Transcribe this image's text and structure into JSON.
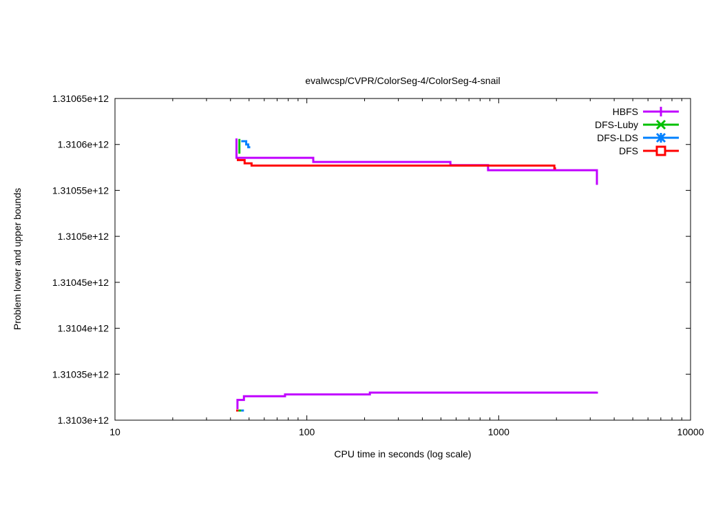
{
  "chart_data": {
    "type": "line",
    "title": "evalwcsp/CVPR/ColorSeg-4/ColorSeg-4-snail",
    "xlabel": "CPU time in seconds (log scale)",
    "ylabel": "Problem lower and upper bounds",
    "x_scale": "log",
    "xlim": [
      10,
      10000
    ],
    "ylim": [
      1310300000000.0,
      1310650000000.0
    ],
    "x_ticks": [
      10,
      100,
      1000,
      10000
    ],
    "x_tick_labels": [
      "10",
      "100",
      "1000",
      "10000"
    ],
    "y_ticks": [
      1310300000000.0,
      1310350000000.0,
      1310400000000.0,
      1310450000000.0,
      1310500000000.0,
      1310550000000.0,
      1310600000000.0,
      1310650000000.0
    ],
    "y_tick_labels": [
      "1.3103e+12",
      "1.31035e+12",
      "1.3104e+12",
      "1.31045e+12",
      "1.3105e+12",
      "1.31055e+12",
      "1.3106e+12",
      "1.31065e+12"
    ],
    "grid": false,
    "legend_position": "top-right-inside",
    "axis_color": "#000000",
    "background_color": "#ffffff",
    "series": [
      {
        "name": "HBFS",
        "color": "#c000ff",
        "marker": "plus",
        "lines": [
          [
            [
              43,
              1310606500000.0
            ],
            [
              43,
              1310585500000.0
            ],
            [
              108,
              1310585500000.0
            ],
            [
              108,
              1310581000000.0
            ],
            [
              560,
              1310581000000.0
            ],
            [
              560,
              1310577500000.0
            ],
            [
              880,
              1310577500000.0
            ],
            [
              880,
              1310572000000.0
            ],
            [
              3250,
              1310572000000.0
            ],
            [
              3250,
              1310556000000.0
            ]
          ],
          [
            [
              43.5,
              1310312000000.0
            ],
            [
              43.5,
              1310322000000.0
            ],
            [
              47,
              1310322000000.0
            ],
            [
              47,
              1310326000000.0
            ],
            [
              77,
              1310326000000.0
            ],
            [
              77,
              1310328000000.0
            ],
            [
              213,
              1310328000000.0
            ],
            [
              213,
              1310330000000.0
            ],
            [
              3250,
              1310330000000.0
            ],
            [
              3250,
              1310331000000.0
            ]
          ]
        ]
      },
      {
        "name": "DFS-Luby",
        "color": "#00c000",
        "marker": "cross",
        "lines": [
          [
            [
              44.5,
              1310606000000.0
            ],
            [
              44.5,
              1310590000000.0
            ]
          ],
          [
            [
              44,
              1310310500000.0
            ],
            [
              45.5,
              1310310500000.0
            ]
          ]
        ]
      },
      {
        "name": "DFS-LDS",
        "color": "#0080ff",
        "marker": "asterisk",
        "lines": [
          [
            [
              45.5,
              1310603500000.0
            ],
            [
              48.3,
              1310603500000.0
            ],
            [
              48.3,
              1310600000000.0
            ],
            [
              49.5,
              1310600000000.0
            ],
            [
              49.5,
              1310597000000.0
            ],
            [
              50.7,
              1310597000000.0
            ]
          ],
          [
            [
              45.5,
              1310310500000.0
            ],
            [
              47,
              1310310500000.0
            ]
          ]
        ]
      },
      {
        "name": "DFS",
        "color": "#ff0000",
        "marker": "square",
        "lines": [
          [
            [
              43.7,
              1310584500000.0
            ],
            [
              43.7,
              1310583000000.0
            ],
            [
              47.4,
              1310583000000.0
            ],
            [
              47.4,
              1310579500000.0
            ],
            [
              51.5,
              1310579500000.0
            ],
            [
              51.5,
              1310577000000.0
            ],
            [
              1950,
              1310577000000.0
            ],
            [
              1950,
              1310574000000.0
            ],
            [
              1990,
              1310574000000.0
            ]
          ],
          [
            [
              42.8,
              1310310500000.0
            ],
            [
              44,
              1310310500000.0
            ]
          ]
        ]
      }
    ]
  }
}
